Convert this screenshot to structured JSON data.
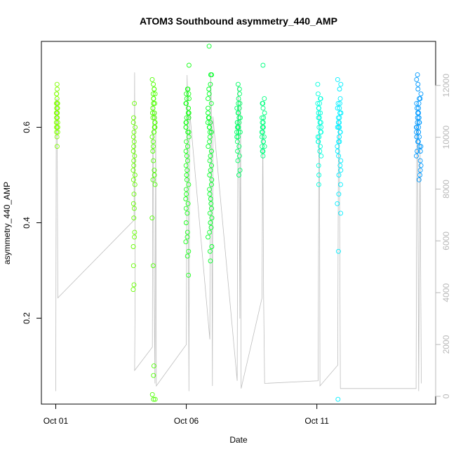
{
  "chart_data": {
    "type": "scatter",
    "title": "ATOM3 Southbound asymmetry_440_AMP",
    "xlabel": "Date",
    "ylabel": "asymmetry_440_AMP",
    "x_tick_labels": [
      "Oct 01",
      "Oct 06",
      "Oct 11"
    ],
    "x_tick_values": [
      1,
      6,
      11
    ],
    "x_range": [
      0.45,
      15.55
    ],
    "y_ticks": [
      0.2,
      0.4,
      0.6
    ],
    "y_range": [
      0.02,
      0.78
    ],
    "y2_ticks": [
      0,
      2000,
      4000,
      6000,
      8000,
      10000,
      12000
    ],
    "y2_range": [
      -300,
      13700
    ],
    "y2_color": "#b8b8b8",
    "grid": false,
    "legend": "none",
    "point_colors": [
      "#80ff00",
      "#00ff40",
      "#00ffff",
      "#0080ff"
    ],
    "line_color": "#bebebe",
    "series": [
      {
        "x_center": 1.05,
        "x_spread": 0.03,
        "y_values": [
          0.69,
          0.68,
          0.67,
          0.67,
          0.66,
          0.66,
          0.65,
          0.65,
          0.65,
          0.64,
          0.64,
          0.64,
          0.63,
          0.63,
          0.63,
          0.63,
          0.62,
          0.62,
          0.62,
          0.62,
          0.61,
          0.61,
          0.61,
          0.6,
          0.6,
          0.6,
          0.59,
          0.59,
          0.58,
          0.56
        ],
        "color": "#80ff00"
      },
      {
        "x_center": 4.0,
        "x_spread": 0.04,
        "y_values": [
          0.65,
          0.62,
          0.61,
          0.6,
          0.59,
          0.58,
          0.57,
          0.56,
          0.55,
          0.54,
          0.53,
          0.52,
          0.51,
          0.5,
          0.49,
          0.48,
          0.46,
          0.44,
          0.43,
          0.41,
          0.38,
          0.37,
          0.35,
          0.31,
          0.27,
          0.26
        ],
        "color": "#66ff00"
      },
      {
        "x_center": 4.75,
        "x_spread": 0.06,
        "y_values": [
          0.7,
          0.69,
          0.68,
          0.68,
          0.67,
          0.67,
          0.66,
          0.66,
          0.66,
          0.65,
          0.65,
          0.65,
          0.64,
          0.64,
          0.63,
          0.63,
          0.62,
          0.62,
          0.61,
          0.61,
          0.6,
          0.6,
          0.6,
          0.59,
          0.59,
          0.58,
          0.57,
          0.56,
          0.55,
          0.53,
          0.51,
          0.5,
          0.49,
          0.48,
          0.41,
          0.31,
          0.1,
          0.08,
          0.04,
          0.03,
          0.03
        ],
        "color": "#4dff00"
      },
      {
        "x_center": 6.05,
        "x_spread": 0.07,
        "y_values": [
          0.73,
          0.68,
          0.68,
          0.67,
          0.67,
          0.66,
          0.66,
          0.65,
          0.65,
          0.64,
          0.64,
          0.63,
          0.63,
          0.62,
          0.62,
          0.61,
          0.61,
          0.6,
          0.6,
          0.59,
          0.59,
          0.58,
          0.57,
          0.56,
          0.55,
          0.54,
          0.53,
          0.52,
          0.51,
          0.5,
          0.49,
          0.48,
          0.47,
          0.46,
          0.45,
          0.44,
          0.43,
          0.42,
          0.4,
          0.38,
          0.37,
          0.36,
          0.34,
          0.33,
          0.29
        ],
        "color": "#19ff1a"
      },
      {
        "x_center": 6.9,
        "x_spread": 0.08,
        "y_values": [
          0.77,
          0.71,
          0.71,
          0.69,
          0.68,
          0.67,
          0.66,
          0.65,
          0.64,
          0.63,
          0.62,
          0.62,
          0.61,
          0.61,
          0.6,
          0.6,
          0.59,
          0.59,
          0.58,
          0.57,
          0.56,
          0.55,
          0.54,
          0.53,
          0.52,
          0.51,
          0.5,
          0.49,
          0.48,
          0.47,
          0.46,
          0.45,
          0.44,
          0.43,
          0.42,
          0.41,
          0.4,
          0.39,
          0.38,
          0.37,
          0.35,
          0.34,
          0.32
        ],
        "color": "#00ff26"
      },
      {
        "x_center": 8.0,
        "x_spread": 0.07,
        "y_values": [
          0.69,
          0.68,
          0.67,
          0.66,
          0.65,
          0.65,
          0.64,
          0.64,
          0.63,
          0.63,
          0.62,
          0.62,
          0.61,
          0.61,
          0.61,
          0.6,
          0.6,
          0.6,
          0.59,
          0.59,
          0.59,
          0.58,
          0.58,
          0.57,
          0.56,
          0.55,
          0.54,
          0.53,
          0.51,
          0.5
        ],
        "color": "#00ff66"
      },
      {
        "x_center": 8.95,
        "x_spread": 0.06,
        "y_values": [
          0.73,
          0.66,
          0.65,
          0.65,
          0.64,
          0.63,
          0.62,
          0.62,
          0.61,
          0.61,
          0.6,
          0.6,
          0.6,
          0.59,
          0.59,
          0.58,
          0.58,
          0.57,
          0.57,
          0.56,
          0.56,
          0.55,
          0.55,
          0.54
        ],
        "color": "#00ff80"
      },
      {
        "x_center": 11.1,
        "x_spread": 0.07,
        "y_values": [
          0.69,
          0.67,
          0.66,
          0.66,
          0.65,
          0.65,
          0.64,
          0.64,
          0.63,
          0.63,
          0.62,
          0.62,
          0.61,
          0.61,
          0.6,
          0.6,
          0.59,
          0.59,
          0.58,
          0.58,
          0.57,
          0.57,
          0.56,
          0.55,
          0.54,
          0.52,
          0.5,
          0.48
        ],
        "color": "#00ffdd"
      },
      {
        "x_center": 11.85,
        "x_spread": 0.08,
        "y_values": [
          0.7,
          0.69,
          0.68,
          0.66,
          0.65,
          0.65,
          0.64,
          0.64,
          0.63,
          0.63,
          0.62,
          0.62,
          0.61,
          0.61,
          0.6,
          0.6,
          0.6,
          0.59,
          0.59,
          0.58,
          0.58,
          0.57,
          0.57,
          0.56,
          0.55,
          0.54,
          0.53,
          0.52,
          0.51,
          0.5,
          0.48,
          0.46,
          0.44,
          0.42,
          0.34,
          0.03
        ],
        "color": "#00eeff"
      },
      {
        "x_center": 14.9,
        "x_spread": 0.09,
        "y_values": [
          0.71,
          0.7,
          0.69,
          0.68,
          0.67,
          0.66,
          0.66,
          0.65,
          0.65,
          0.64,
          0.64,
          0.63,
          0.63,
          0.62,
          0.62,
          0.62,
          0.61,
          0.61,
          0.61,
          0.6,
          0.6,
          0.6,
          0.59,
          0.59,
          0.59,
          0.58,
          0.58,
          0.58,
          0.57,
          0.57,
          0.56,
          0.56,
          0.55,
          0.55,
          0.54,
          0.53,
          0.52,
          0.51,
          0.5,
          0.49
        ],
        "color": "#0099ff"
      }
    ],
    "line_series": {
      "axis": "right",
      "path": [
        [
          1.0,
          200
        ],
        [
          1.02,
          11400
        ],
        [
          1.05,
          11500
        ],
        [
          1.08,
          3800
        ],
        [
          4.0,
          6800
        ],
        [
          4.02,
          12500
        ],
        [
          4.04,
          3800
        ],
        [
          4.02,
          1000
        ],
        [
          4.7,
          1900
        ],
        [
          4.72,
          11400
        ],
        [
          4.75,
          6400
        ],
        [
          4.8,
          500
        ],
        [
          4.83,
          11000
        ],
        [
          4.85,
          400
        ],
        [
          6.0,
          2000
        ],
        [
          6.03,
          12400
        ],
        [
          6.06,
          10900
        ],
        [
          6.1,
          200
        ],
        [
          6.13,
          11000
        ],
        [
          6.9,
          2200
        ],
        [
          6.93,
          12500
        ],
        [
          6.96,
          11200
        ],
        [
          7.0,
          400
        ],
        [
          7.02,
          10800
        ],
        [
          7.95,
          600
        ],
        [
          7.98,
          12000
        ],
        [
          8.02,
          9500
        ],
        [
          8.05,
          3000
        ],
        [
          8.08,
          11500
        ],
        [
          8.1,
          300
        ],
        [
          8.9,
          3800
        ],
        [
          8.93,
          10500
        ],
        [
          8.96,
          4000
        ],
        [
          9.0,
          500
        ],
        [
          11.05,
          600
        ],
        [
          11.08,
          11000
        ],
        [
          11.1,
          9700
        ],
        [
          11.12,
          400
        ],
        [
          11.8,
          1200
        ],
        [
          11.83,
          10700
        ],
        [
          11.86,
          9800
        ],
        [
          11.9,
          300
        ],
        [
          14.8,
          300
        ],
        [
          14.83,
          10800
        ],
        [
          14.86,
          9900
        ],
        [
          14.9,
          200
        ],
        [
          14.95,
          9800
        ],
        [
          15.0,
          500
        ]
      ]
    }
  }
}
